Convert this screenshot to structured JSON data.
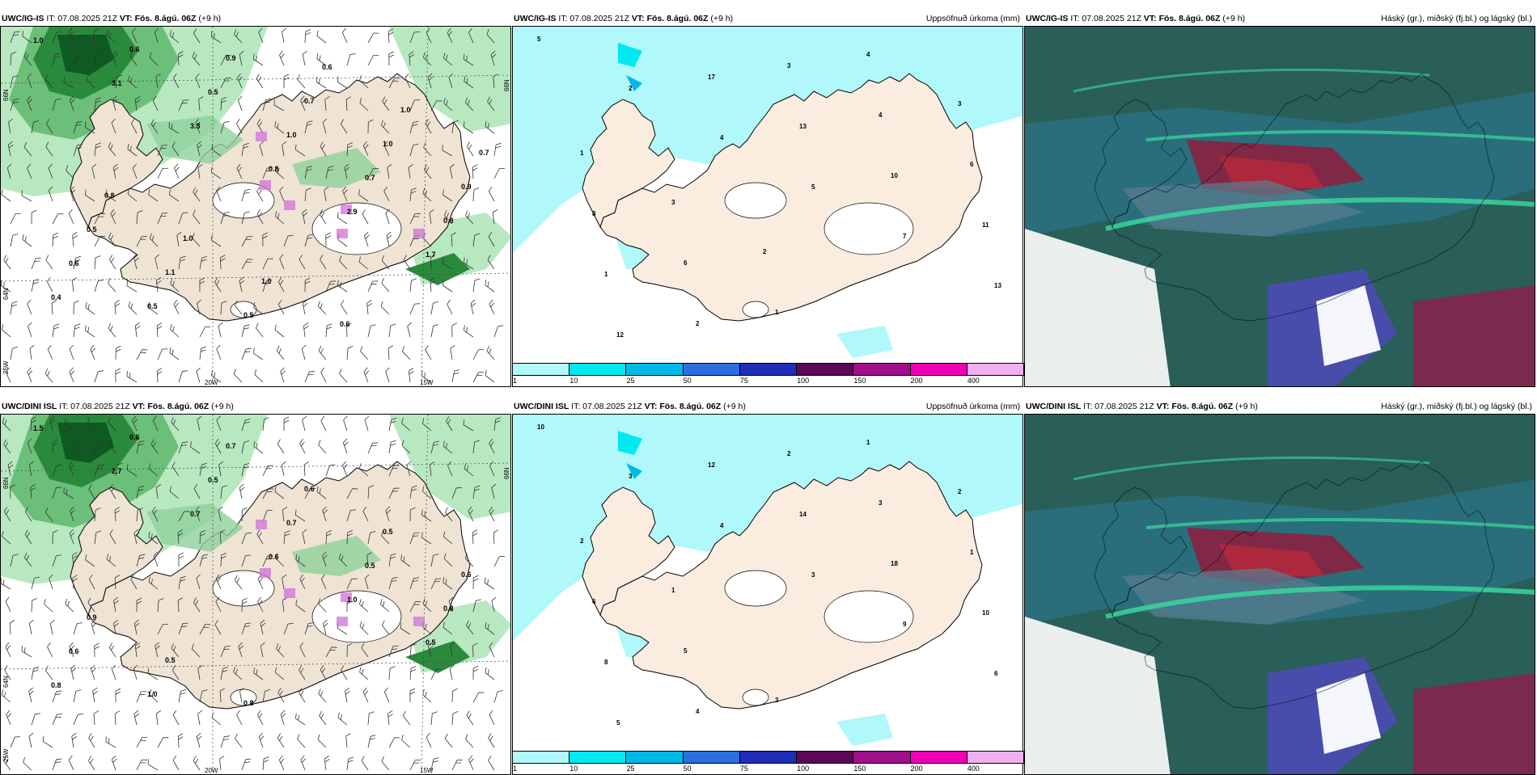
{
  "layout_rows": [
    {
      "panels": [
        {
          "model": "UWC/IG-IS",
          "it_label": "IT:",
          "it_value": "07.08.2025 21Z",
          "vt_label": "VT:",
          "vt_value": "Fös. 8.ágú. 06Z",
          "lead": "(+9 h)",
          "right_title": "",
          "type": "wind"
        },
        {
          "model": "UWC/IG-IS",
          "it_label": "IT:",
          "it_value": "07.08.2025 21Z",
          "vt_label": "VT:",
          "vt_value": "Fös. 8.ágú. 06Z",
          "lead": "(+9 h)",
          "right_title": "Uppsöfnuð úrkoma (mm)",
          "type": "precip"
        },
        {
          "model": "UWC/IG-IS",
          "it_label": "IT:",
          "it_value": "07.08.2025 21Z",
          "vt_label": "VT:",
          "vt_value": "Fös. 8.ágú. 06Z",
          "lead": "(+9 h)",
          "right_title": "Háský (gr.), miðský (fj.bl.) og lágský (bl.)",
          "type": "cloud"
        }
      ]
    },
    {
      "panels": [
        {
          "model": "UWC/DINI ISL",
          "it_label": "IT:",
          "it_value": "07.08.2025 21Z",
          "vt_label": "VT:",
          "vt_value": "Fös. 8.ágú. 06Z",
          "lead": "(+9 h)",
          "right_title": "",
          "type": "wind"
        },
        {
          "model": "UWC/DINI ISL",
          "it_label": "IT:",
          "it_value": "07.08.2025 21Z",
          "vt_label": "VT:",
          "vt_value": "Fös. 8.ágú. 06Z",
          "lead": "(+9 h)",
          "right_title": "Uppsöfnuð úrkoma (mm)",
          "type": "precip"
        },
        {
          "model": "UWC/DINI ISL",
          "it_label": "IT:",
          "it_value": "07.08.2025 21Z",
          "vt_label": "VT:",
          "vt_value": "Fös. 8.ágú. 06Z",
          "lead": "(+9 h)",
          "right_title": "Háský (gr.), miðský (fj.bl.) og lágský (bl.)",
          "type": "cloud"
        }
      ]
    }
  ],
  "axis_labels": {
    "lat_66": "66N",
    "lat_64": "64N",
    "lon_20w": "20W",
    "lon_15w": "15W",
    "lon_25w": "25W"
  },
  "colorbar": {
    "ticks": [
      "1",
      "10",
      "25",
      "50",
      "75",
      "100",
      "150",
      "200",
      "400"
    ],
    "colors": [
      "#b0f8fa",
      "#00e8f0",
      "#00b8e8",
      "#2c6ee0",
      "#1f2db8",
      "#5a0858",
      "#a0108a",
      "#f000b4",
      "#f0b0f0"
    ]
  },
  "precip_labels_top": [
    "5",
    "2",
    "4",
    "5",
    "7",
    "13",
    "12",
    "17",
    "13",
    "10",
    "11",
    "1",
    "2",
    "3",
    "4",
    "6",
    "8",
    "6",
    "1",
    "4",
    "3",
    "1",
    "3",
    "2"
  ],
  "precip_labels_bottom": [
    "10",
    "3",
    "4",
    "3",
    "9",
    "6",
    "5",
    "12",
    "14",
    "18",
    "10",
    "8",
    "4",
    "2",
    "3",
    "1",
    "6",
    "5",
    "3",
    "1",
    "2",
    "2",
    "1"
  ],
  "wind_labels_top": [
    "1.0",
    "3.1",
    "3.3",
    "0.8",
    "2.9",
    "1.7",
    "0.4",
    "0.6",
    "0.5",
    "1.0",
    "0.7",
    "0.8",
    "0.6",
    "0.5",
    "0.9",
    "0.7",
    "1.0",
    "0.9",
    "0.5",
    "1.1",
    "0.5",
    "0.6",
    "1.0",
    "0.7",
    "0.8",
    "1.0",
    "1.0",
    "0.6"
  ],
  "wind_labels_bottom": [
    "1.5",
    "2.7",
    "0.7",
    "0.6",
    "1.0",
    "0.5",
    "0.8",
    "0.6",
    "0.5",
    "0.7",
    "0.5",
    "0.8",
    "0.6",
    "1.0",
    "0.7",
    "0.6",
    "0.5",
    "0.6",
    "0.9",
    "0.5",
    "0.8"
  ]
}
